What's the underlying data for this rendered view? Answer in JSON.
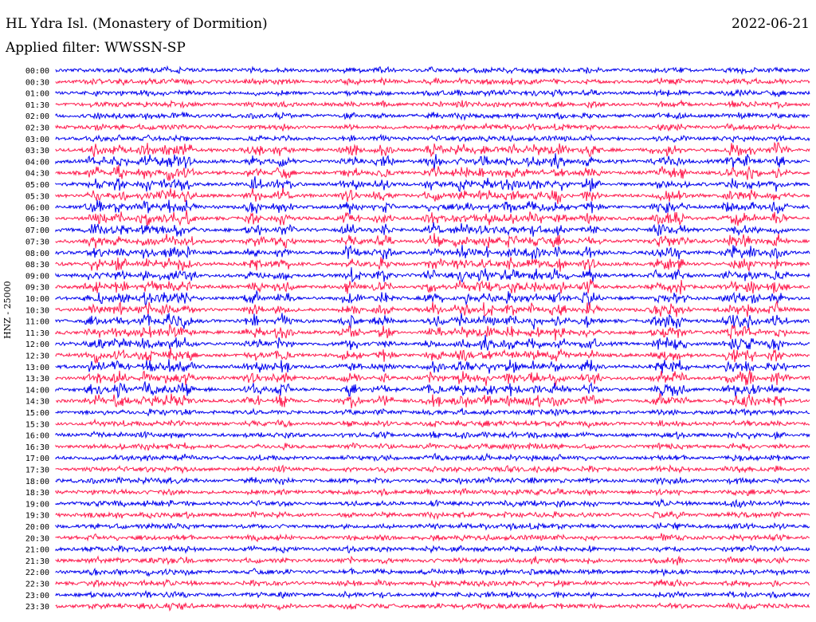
{
  "header": {
    "station": "HL Ydra Isl. (Monastery of Dormition)",
    "filter": "Applied filter: WWSSN-SP",
    "date": "2022-06-21",
    "channel": "HNZ - 25000"
  },
  "colors": {
    "odd": "#0000ee",
    "even": "#ff1a4d",
    "text": "#000000"
  },
  "chart_data": {
    "type": "line",
    "title": "HL Ydra Isl. (Monastery of Dormition)",
    "subtitle": "Applied filter: WWSSN-SP",
    "ylabel": "HNZ - 25000",
    "y_ticks": [
      "00:00",
      "00:30",
      "01:00",
      "01:30",
      "02:00",
      "02:30",
      "03:00",
      "03:30",
      "04:00",
      "04:30",
      "05:00",
      "05:30",
      "06:00",
      "06:30",
      "07:00",
      "07:30",
      "08:00",
      "08:30",
      "09:00",
      "09:30",
      "10:00",
      "10:30",
      "11:00",
      "11:30",
      "12:00",
      "12:30",
      "13:00",
      "13:30",
      "14:00",
      "14:30",
      "15:00",
      "15:30",
      "16:00",
      "16:30",
      "17:00",
      "17:30",
      "18:00",
      "18:30",
      "19:00",
      "19:30",
      "20:00",
      "20:30",
      "21:00",
      "21:30",
      "22:00",
      "22:30",
      "23:00",
      "23:30"
    ],
    "trace_colors": [
      "#0000ee",
      "#ff1a4d"
    ],
    "grid": false
  }
}
